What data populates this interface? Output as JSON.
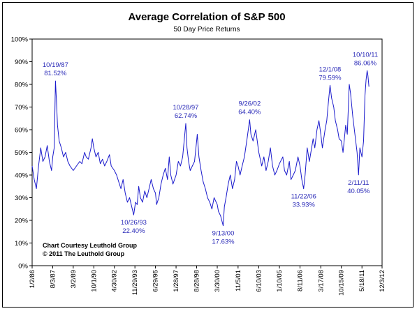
{
  "chart_data": {
    "type": "line",
    "title": "Average Correlation of S&P 500",
    "subtitle": "50 Day Price Returns",
    "xlabel": "",
    "ylabel": "",
    "ylim": [
      0,
      100
    ],
    "xlim": [
      "1986-01-02",
      "2012-12-03"
    ],
    "grid": false,
    "legend": "none",
    "y_ticks": [
      "0%",
      "10%",
      "20%",
      "30%",
      "40%",
      "50%",
      "60%",
      "70%",
      "80%",
      "90%",
      "100%"
    ],
    "x_ticks": [
      {
        "label": "1/2/86",
        "date": "1986-01-02"
      },
      {
        "label": "8/3/87",
        "date": "1987-08-03"
      },
      {
        "label": "3/2/89",
        "date": "1989-03-02"
      },
      {
        "label": "10/1/90",
        "date": "1990-10-01"
      },
      {
        "label": "4/30/92",
        "date": "1992-04-30"
      },
      {
        "label": "11/29/93",
        "date": "1993-11-29"
      },
      {
        "label": "6/29/95",
        "date": "1995-06-29"
      },
      {
        "label": "1/28/97",
        "date": "1997-01-28"
      },
      {
        "label": "8/28/98",
        "date": "1998-08-28"
      },
      {
        "label": "3/30/00",
        "date": "2000-03-30"
      },
      {
        "label": "11/5/01",
        "date": "2001-11-05"
      },
      {
        "label": "6/10/03",
        "date": "2003-06-10"
      },
      {
        "label": "1/10/05",
        "date": "2005-01-10"
      },
      {
        "label": "8/11/06",
        "date": "2006-08-11"
      },
      {
        "label": "3/17/08",
        "date": "2008-03-17"
      },
      {
        "label": "10/15/09",
        "date": "2009-10-15"
      },
      {
        "label": "5/18/11",
        "date": "2011-05-18"
      },
      {
        "label": "12/3/12",
        "date": "2012-12-03"
      }
    ],
    "series": [
      {
        "color": "#1a1acc",
        "points": [
          [
            "1986-01-02",
            44
          ],
          [
            "1986-03-01",
            38
          ],
          [
            "1986-05-01",
            34
          ],
          [
            "1986-07-01",
            44
          ],
          [
            "1986-09-01",
            52
          ],
          [
            "1986-11-01",
            46
          ],
          [
            "1987-01-01",
            48
          ],
          [
            "1987-03-01",
            53
          ],
          [
            "1987-05-01",
            46
          ],
          [
            "1987-07-01",
            42
          ],
          [
            "1987-08-03",
            48
          ],
          [
            "1987-09-15",
            52
          ],
          [
            "1987-10-19",
            81.52
          ],
          [
            "1987-11-15",
            73
          ],
          [
            "1987-12-15",
            62
          ],
          [
            "1988-02-01",
            55
          ],
          [
            "1988-04-01",
            52
          ],
          [
            "1988-06-01",
            48
          ],
          [
            "1988-08-01",
            50
          ],
          [
            "1988-10-01",
            46
          ],
          [
            "1988-12-01",
            44
          ],
          [
            "1989-03-02",
            42
          ],
          [
            "1989-06-01",
            44
          ],
          [
            "1989-09-01",
            46
          ],
          [
            "1989-11-01",
            45
          ],
          [
            "1990-01-15",
            50
          ],
          [
            "1990-03-01",
            48
          ],
          [
            "1990-05-01",
            47
          ],
          [
            "1990-07-15",
            52
          ],
          [
            "1990-08-20",
            56
          ],
          [
            "1990-10-01",
            52
          ],
          [
            "1990-12-01",
            48
          ],
          [
            "1991-02-01",
            50
          ],
          [
            "1991-04-01",
            45
          ],
          [
            "1991-06-01",
            47
          ],
          [
            "1991-08-01",
            44
          ],
          [
            "1991-10-01",
            46
          ],
          [
            "1991-12-15",
            49
          ],
          [
            "1992-02-01",
            44
          ],
          [
            "1992-04-30",
            42
          ],
          [
            "1992-07-01",
            40
          ],
          [
            "1992-09-01",
            37
          ],
          [
            "1992-11-01",
            34
          ],
          [
            "1993-01-01",
            38
          ],
          [
            "1993-03-01",
            32
          ],
          [
            "1993-05-01",
            28
          ],
          [
            "1993-07-01",
            30
          ],
          [
            "1993-09-01",
            26
          ],
          [
            "1993-10-26",
            22.4
          ],
          [
            "1993-12-15",
            28
          ],
          [
            "1994-02-01",
            27
          ],
          [
            "1994-03-15",
            35
          ],
          [
            "1994-05-01",
            30
          ],
          [
            "1994-07-01",
            28
          ],
          [
            "1994-09-01",
            33
          ],
          [
            "1994-11-01",
            30
          ],
          [
            "1995-01-01",
            34
          ],
          [
            "1995-03-01",
            38
          ],
          [
            "1995-05-01",
            34
          ],
          [
            "1995-06-29",
            32
          ],
          [
            "1995-08-01",
            27
          ],
          [
            "1995-10-01",
            30
          ],
          [
            "1995-12-01",
            36
          ],
          [
            "1996-02-01",
            40
          ],
          [
            "1996-04-01",
            43
          ],
          [
            "1996-06-01",
            38
          ],
          [
            "1996-07-20",
            48
          ],
          [
            "1996-09-01",
            40
          ],
          [
            "1996-11-01",
            36
          ],
          [
            "1997-01-28",
            40
          ],
          [
            "1997-04-01",
            46
          ],
          [
            "1997-06-01",
            44
          ],
          [
            "1997-08-01",
            48
          ],
          [
            "1997-10-28",
            62.74
          ],
          [
            "1997-12-01",
            52
          ],
          [
            "1998-01-15",
            46
          ],
          [
            "1998-03-01",
            42
          ],
          [
            "1998-05-01",
            44
          ],
          [
            "1998-07-01",
            46
          ],
          [
            "1998-08-28",
            55
          ],
          [
            "1998-09-15",
            58
          ],
          [
            "1998-11-01",
            48
          ],
          [
            "1999-01-01",
            42
          ],
          [
            "1999-03-01",
            37
          ],
          [
            "1999-05-01",
            34
          ],
          [
            "1999-07-01",
            30
          ],
          [
            "1999-09-01",
            28
          ],
          [
            "1999-11-01",
            25
          ],
          [
            "2000-01-01",
            30
          ],
          [
            "2000-03-30",
            27
          ],
          [
            "2000-05-01",
            24
          ],
          [
            "2000-07-01",
            22
          ],
          [
            "2000-09-13",
            17.63
          ],
          [
            "2000-10-15",
            26
          ],
          [
            "2000-12-01",
            30
          ],
          [
            "2001-02-01",
            36
          ],
          [
            "2001-04-01",
            40
          ],
          [
            "2001-06-01",
            34
          ],
          [
            "2001-08-01",
            38
          ],
          [
            "2001-09-20",
            46
          ],
          [
            "2001-11-05",
            44
          ],
          [
            "2002-01-01",
            40
          ],
          [
            "2002-03-01",
            44
          ],
          [
            "2002-05-01",
            48
          ],
          [
            "2002-07-15",
            56
          ],
          [
            "2002-09-26",
            64.4
          ],
          [
            "2002-11-01",
            58
          ],
          [
            "2003-01-01",
            55
          ],
          [
            "2003-03-15",
            60
          ],
          [
            "2003-06-10",
            50
          ],
          [
            "2003-09-01",
            44
          ],
          [
            "2003-11-01",
            48
          ],
          [
            "2004-01-01",
            42
          ],
          [
            "2004-03-01",
            46
          ],
          [
            "2004-05-01",
            52
          ],
          [
            "2004-07-01",
            44
          ],
          [
            "2004-09-01",
            40
          ],
          [
            "2004-11-01",
            42
          ],
          [
            "2005-01-10",
            45
          ],
          [
            "2005-04-15",
            48
          ],
          [
            "2005-06-01",
            42
          ],
          [
            "2005-08-01",
            40
          ],
          [
            "2005-10-15",
            46
          ],
          [
            "2005-12-01",
            38
          ],
          [
            "2006-02-01",
            40
          ],
          [
            "2006-04-01",
            42
          ],
          [
            "2006-06-15",
            48
          ],
          [
            "2006-08-11",
            44
          ],
          [
            "2006-10-01",
            38
          ],
          [
            "2006-11-22",
            33.93
          ],
          [
            "2007-01-01",
            40
          ],
          [
            "2007-03-01",
            52
          ],
          [
            "2007-05-01",
            46
          ],
          [
            "2007-08-15",
            56
          ],
          [
            "2007-10-01",
            52
          ],
          [
            "2007-12-01",
            60
          ],
          [
            "2008-01-25",
            64
          ],
          [
            "2008-03-17",
            58
          ],
          [
            "2008-05-01",
            52
          ],
          [
            "2008-07-15",
            60
          ],
          [
            "2008-09-01",
            64
          ],
          [
            "2008-10-15",
            72
          ],
          [
            "2008-12-01",
            79.59
          ],
          [
            "2009-01-15",
            74
          ],
          [
            "2009-03-15",
            70
          ],
          [
            "2009-05-01",
            64
          ],
          [
            "2009-07-01",
            60
          ],
          [
            "2009-08-15",
            56
          ],
          [
            "2009-10-15",
            55
          ],
          [
            "2009-12-01",
            50
          ],
          [
            "2010-02-15",
            62
          ],
          [
            "2010-04-01",
            58
          ],
          [
            "2010-05-25",
            80
          ],
          [
            "2010-07-01",
            76
          ],
          [
            "2010-09-01",
            66
          ],
          [
            "2010-11-01",
            58
          ],
          [
            "2011-01-01",
            50
          ],
          [
            "2011-02-11",
            40.05
          ],
          [
            "2011-03-20",
            52
          ],
          [
            "2011-05-18",
            48
          ],
          [
            "2011-07-01",
            55
          ],
          [
            "2011-08-10",
            75
          ],
          [
            "2011-09-10",
            82
          ],
          [
            "2011-10-10",
            86.06
          ],
          [
            "2011-11-01",
            84
          ],
          [
            "2011-12-01",
            79
          ]
        ]
      }
    ],
    "annotations": [
      {
        "date": "1987-10-19",
        "value": 81.52,
        "label_date": "10/19/87",
        "label_value": "81.52%",
        "pos": "above"
      },
      {
        "date": "1993-10-26",
        "value": 22.4,
        "label_date": "10/26/93",
        "label_value": "22.40%",
        "pos": "below"
      },
      {
        "date": "1997-10-28",
        "value": 62.74,
        "label_date": "10/28/97",
        "label_value": "62.74%",
        "pos": "above"
      },
      {
        "date": "2000-09-13",
        "value": 17.63,
        "label_date": "9/13/00",
        "label_value": "17.63%",
        "pos": "below"
      },
      {
        "date": "2002-09-26",
        "value": 64.4,
        "label_date": "9/26/02",
        "label_value": "64.40%",
        "pos": "above"
      },
      {
        "date": "2006-11-22",
        "value": 33.93,
        "label_date": "11/22/06",
        "label_value": "33.93%",
        "pos": "below"
      },
      {
        "date": "2008-12-01",
        "value": 79.59,
        "label_date": "12/1/08",
        "label_value": "79.59%",
        "pos": "above"
      },
      {
        "date": "2011-02-11",
        "value": 40.05,
        "label_date": "2/11/11",
        "label_value": "40.05%",
        "pos": "below"
      },
      {
        "date": "2011-10-10",
        "value": 86.06,
        "label_date": "10/10/11",
        "label_value": "86.06%",
        "pos": "above"
      }
    ],
    "credit_lines": [
      "Chart Courtesy Leuthold Group",
      "© 2011 The Leuthold Group"
    ]
  }
}
